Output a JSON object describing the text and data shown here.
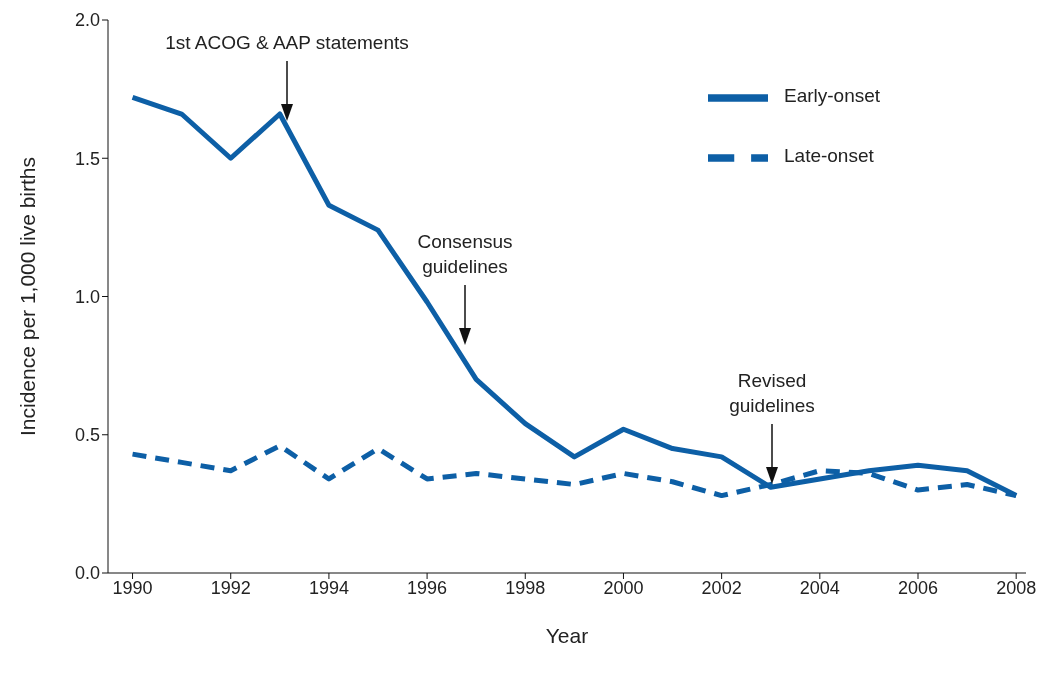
{
  "chart_data": {
    "type": "line",
    "xlabel": "Year",
    "ylabel": "Incidence per 1,000 live births",
    "x": [
      1990,
      1991,
      1992,
      1993,
      1994,
      1995,
      1996,
      1997,
      1998,
      1999,
      2000,
      2001,
      2002,
      2003,
      2004,
      2005,
      2006,
      2007,
      2008
    ],
    "series": [
      {
        "name": "Early-onset",
        "color": "#0d5fa6",
        "line_style": "solid",
        "values": [
          1.72,
          1.66,
          1.5,
          1.66,
          1.33,
          1.24,
          0.98,
          0.7,
          0.54,
          0.42,
          0.52,
          0.45,
          0.42,
          0.31,
          0.34,
          0.37,
          0.39,
          0.37,
          0.28
        ]
      },
      {
        "name": "Late-onset",
        "color": "#0d5fa6",
        "line_style": "dashed",
        "values": [
          0.43,
          0.4,
          0.37,
          0.46,
          0.34,
          0.45,
          0.34,
          0.36,
          0.34,
          0.32,
          0.36,
          0.33,
          0.28,
          0.32,
          0.37,
          0.36,
          0.3,
          0.32,
          0.28
        ]
      }
    ],
    "xlim": [
      1989.5,
      2008.2
    ],
    "xticks": [
      1990,
      1992,
      1994,
      1996,
      1998,
      2000,
      2002,
      2004,
      2006,
      2008
    ],
    "ylim": [
      0,
      2
    ],
    "yticks": [
      {
        "value": 0,
        "label": "0.0"
      },
      {
        "value": 0.5,
        "label": "0.5"
      },
      {
        "value": 1,
        "label": "1.0"
      },
      {
        "value": 1.5,
        "label": "1.5"
      },
      {
        "value": 2,
        "label": "2.0"
      }
    ],
    "grid": false,
    "legend": "top right",
    "marker": "none",
    "annotations": [
      "1st ACOG & AAP statements",
      "Consensus guidelines",
      "Revised guidelines"
    ]
  }
}
